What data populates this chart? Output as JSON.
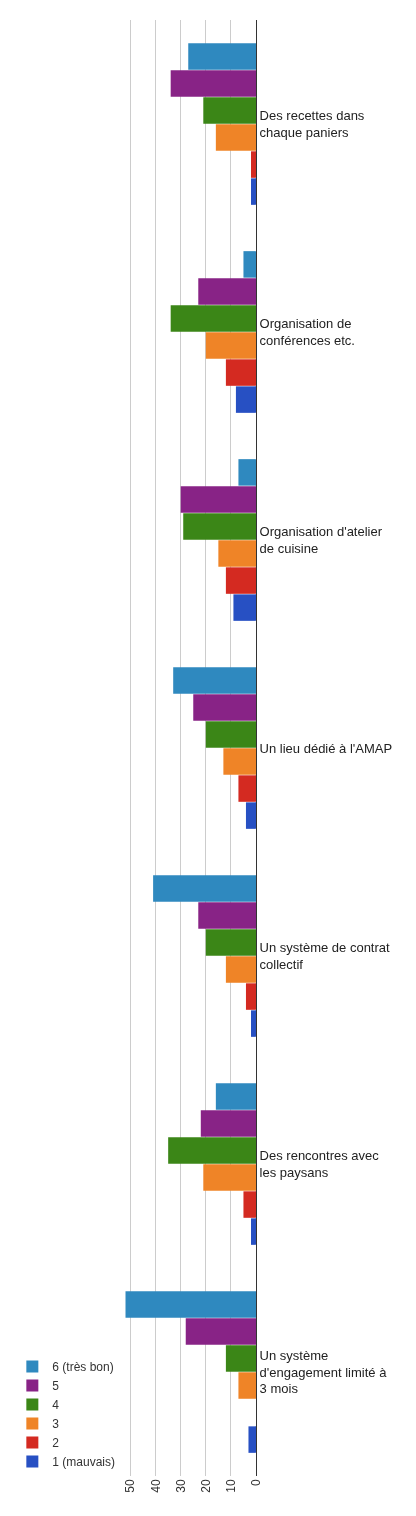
{
  "chart_data": {
    "type": "bar",
    "orientation": "horizontal",
    "categories": [
      "Des recettes dans chaque paniers",
      "Organisation de conférences etc.",
      "Organisation d'atelier de cuisine",
      "Un lieu dédié à l'AMAP",
      "Un système de contrat collectif",
      "Des rencontres avec les paysans",
      "Un système d'engagement limité à 3 mois"
    ],
    "series": [
      {
        "name": "6 (très bon)",
        "color": "#2f89bf",
        "values": [
          27,
          5,
          7,
          33,
          41,
          16,
          52
        ]
      },
      {
        "name": "5",
        "color": "#882386",
        "values": [
          34,
          23,
          30,
          25,
          23,
          22,
          28
        ]
      },
      {
        "name": "4",
        "color": "#3b8617",
        "values": [
          21,
          34,
          29,
          20,
          20,
          35,
          12
        ]
      },
      {
        "name": "3",
        "color": "#ef8427",
        "values": [
          16,
          20,
          15,
          13,
          12,
          21,
          7
        ]
      },
      {
        "name": "2",
        "color": "#d42a21",
        "values": [
          2,
          12,
          12,
          7,
          4,
          5,
          0
        ]
      },
      {
        "name": "1 (mauvais)",
        "color": "#2750c3",
        "values": [
          2,
          8,
          9,
          4,
          2,
          2,
          3
        ]
      }
    ],
    "xlim": [
      53,
      0
    ],
    "xticks": [
      0,
      10,
      20,
      30,
      40,
      50
    ],
    "grid": "x",
    "legend": "left"
  }
}
